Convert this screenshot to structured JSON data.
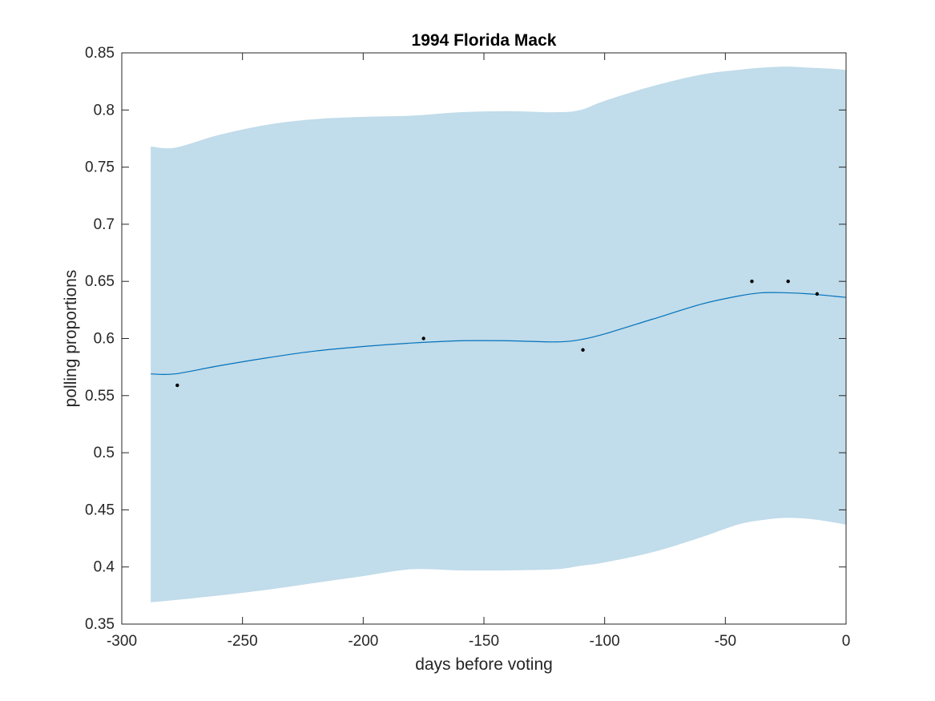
{
  "chart_data": {
    "type": "line",
    "title": "1994 Florida Mack",
    "xlabel": "days before voting",
    "ylabel": "polling proportions",
    "xlim": [
      -300,
      0
    ],
    "ylim": [
      0.35,
      0.85
    ],
    "xticks": [
      -300,
      -250,
      -200,
      -150,
      -100,
      -50,
      0
    ],
    "xtick_labels": [
      "-300",
      "-250",
      "-200",
      "-150",
      "-100",
      "-50",
      "0"
    ],
    "yticks": [
      0.35,
      0.4,
      0.45,
      0.5,
      0.55,
      0.6,
      0.65,
      0.7,
      0.75,
      0.8,
      0.85
    ],
    "ytick_labels": [
      "0.35",
      "0.4",
      "0.45",
      "0.5",
      "0.55",
      "0.6",
      "0.65",
      "0.7",
      "0.75",
      "0.8",
      "0.85"
    ],
    "grid": false,
    "colors": {
      "band": "#c1dcea",
      "line": "#0072bd",
      "points": "#000000",
      "axis": "#262626"
    },
    "mean_line": {
      "x": [
        -288,
        -278,
        -260,
        -240,
        -220,
        -200,
        -180,
        -160,
        -140,
        -120,
        -110,
        -100,
        -80,
        -60,
        -45,
        -35,
        -25,
        -15,
        -5,
        0
      ],
      "y": [
        0.569,
        0.569,
        0.576,
        0.583,
        0.589,
        0.593,
        0.596,
        0.598,
        0.598,
        0.597,
        0.599,
        0.604,
        0.617,
        0.63,
        0.637,
        0.64,
        0.64,
        0.639,
        0.637,
        0.636
      ]
    },
    "band": {
      "x": [
        -288,
        -278,
        -260,
        -240,
        -220,
        -200,
        -180,
        -160,
        -140,
        -120,
        -110,
        -100,
        -80,
        -60,
        -45,
        -35,
        -25,
        -15,
        -5,
        0
      ],
      "upper": [
        0.768,
        0.767,
        0.778,
        0.787,
        0.792,
        0.794,
        0.795,
        0.798,
        0.799,
        0.798,
        0.8,
        0.808,
        0.821,
        0.831,
        0.835,
        0.837,
        0.838,
        0.837,
        0.836,
        0.835
      ],
      "lower": [
        0.369,
        0.371,
        0.375,
        0.38,
        0.386,
        0.392,
        0.398,
        0.397,
        0.397,
        0.398,
        0.401,
        0.404,
        0.413,
        0.426,
        0.437,
        0.441,
        0.443,
        0.442,
        0.439,
        0.437
      ]
    },
    "points": {
      "x": [
        -277,
        -175,
        -109,
        -39,
        -24,
        -12
      ],
      "y": [
        0.559,
        0.6,
        0.59,
        0.65,
        0.65,
        0.639
      ]
    }
  }
}
